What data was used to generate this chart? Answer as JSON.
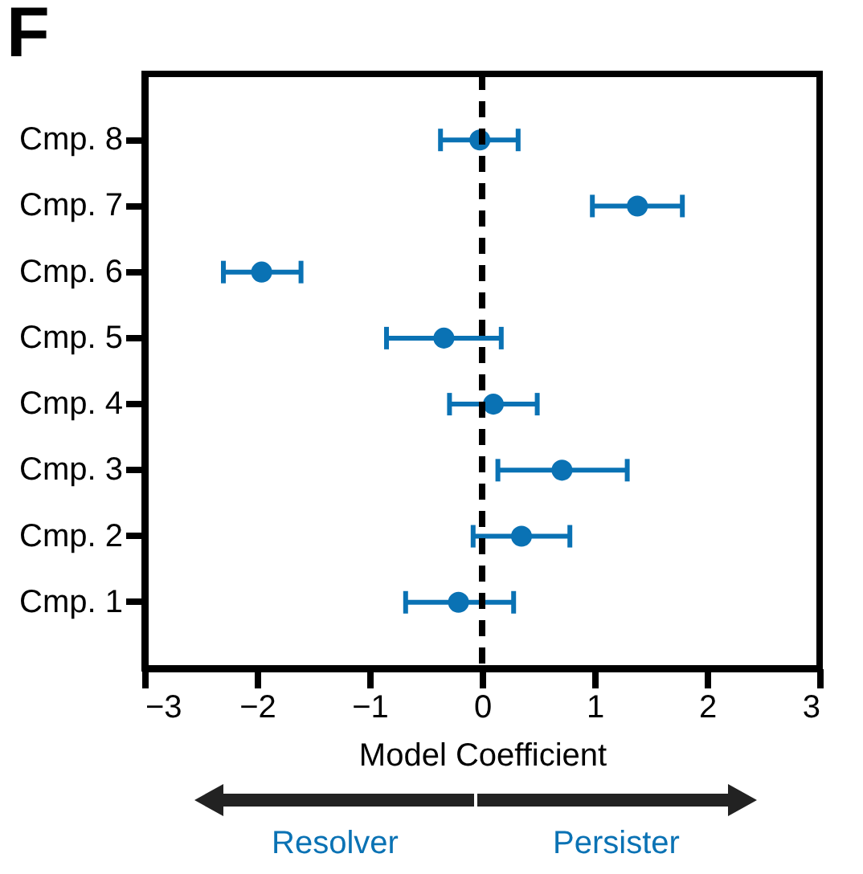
{
  "chart_data": {
    "type": "scatter",
    "orientation": "horizontal",
    "title": "F",
    "xlabel": "Model Coefficient",
    "categories": [
      "Cmp. 8",
      "Cmp. 7",
      "Cmp. 6",
      "Cmp. 5",
      "Cmp. 4",
      "Cmp. 3",
      "Cmp. 2",
      "Cmp. 1"
    ],
    "values": [
      -0.02,
      1.38,
      -1.96,
      -0.34,
      0.1,
      0.71,
      0.35,
      -0.21
    ],
    "errors": [
      [
        -0.37,
        0.32
      ],
      [
        0.98,
        1.78
      ],
      [
        -2.3,
        -1.61
      ],
      [
        -0.85,
        0.17
      ],
      [
        -0.29,
        0.49
      ],
      [
        0.14,
        1.29
      ],
      [
        -0.08,
        0.78
      ],
      [
        -0.68,
        0.28
      ]
    ],
    "color": "#0a72b4",
    "marker": "circle",
    "grid": false,
    "xlim": [
      -3,
      3
    ],
    "xticks": [
      {
        "value": -3,
        "label": "−3"
      },
      {
        "value": -2,
        "label": "−2"
      },
      {
        "value": -1,
        "label": "−1"
      },
      0,
      1,
      2,
      3
    ],
    "ref_lines": [
      {
        "axis": "x",
        "value": 0,
        "color": "#000000",
        "line_style": "dashed"
      }
    ],
    "annotations": [
      "Resolver",
      "Persister"
    ]
  }
}
